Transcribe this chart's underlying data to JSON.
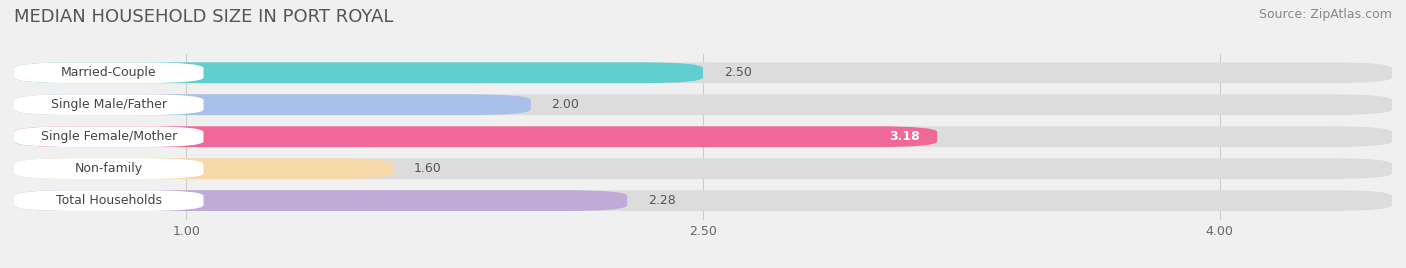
{
  "title": "MEDIAN HOUSEHOLD SIZE IN PORT ROYAL",
  "source": "Source: ZipAtlas.com",
  "categories": [
    "Married-Couple",
    "Single Male/Father",
    "Single Female/Mother",
    "Non-family",
    "Total Households"
  ],
  "values": [
    2.5,
    2.0,
    3.18,
    1.6,
    2.28
  ],
  "bar_colors": [
    "#5ecece",
    "#a8c0e8",
    "#f06898",
    "#f8d8a8",
    "#c0aad8"
  ],
  "xlim": [
    0.5,
    4.5
  ],
  "xticks": [
    1.0,
    2.5,
    4.0
  ],
  "xtick_labels": [
    "1.00",
    "2.50",
    "4.00"
  ],
  "background_color": "#f0f0f0",
  "bar_bg_color": "#dcdcdc",
  "title_fontsize": 13,
  "label_fontsize": 9,
  "value_fontsize": 9,
  "source_fontsize": 9,
  "bar_height": 0.65,
  "bar_gap": 0.15
}
